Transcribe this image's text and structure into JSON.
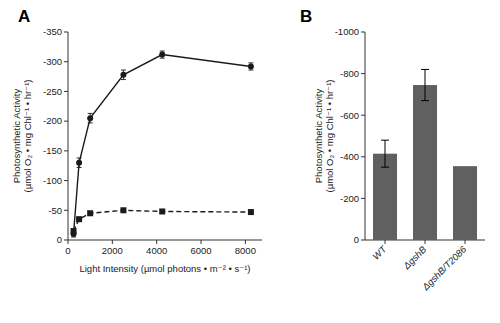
{
  "chart_data": [
    {
      "type": "line",
      "title": "A",
      "x": [
        250,
        500,
        1000,
        2500,
        4250,
        8250
      ],
      "xlabel": "Light Intensity (µmol photons • m⁻² • s⁻¹)",
      "ylabel": "Photosynthetic Activity\n(µmol O₂ • mg Chl⁻¹ • hr⁻¹)",
      "xlim": [
        0,
        8750
      ],
      "xticks": [
        0,
        2000,
        4000,
        6000,
        8000
      ],
      "ylim": [
        0,
        -350
      ],
      "yticks": [
        -350,
        -300,
        -250,
        -200,
        -150,
        -100,
        -50,
        0
      ],
      "series": [
        {
          "color": "#1a1a1a",
          "marker": "circle",
          "line_style": "solid",
          "values": [
            -10,
            -130,
            -205,
            -278,
            -312,
            -292
          ],
          "yerr": [
            5,
            8,
            8,
            8,
            6,
            6
          ]
        },
        {
          "color": "#1a1a1a",
          "marker": "square",
          "line_style": "dashed",
          "values": [
            -15,
            -35,
            -45,
            -50,
            -48,
            -47
          ],
          "yerr": [
            3,
            3,
            3,
            3,
            3,
            3
          ]
        }
      ]
    },
    {
      "type": "bar",
      "title": "B",
      "categories": [
        "WT",
        "ΔgshB",
        "ΔgshB/T2086"
      ],
      "values": [
        -415,
        -745,
        -355
      ],
      "yerr": [
        65,
        75,
        0
      ],
      "color": "#606060",
      "ylabel": "Photosynthetic Activity\n(µmol O₂ • mg Chl⁻¹ • hr⁻¹)",
      "ylim": [
        0,
        -1000
      ],
      "yticks": [
        -1000,
        -800,
        -600,
        -400,
        -200,
        0
      ]
    }
  ]
}
